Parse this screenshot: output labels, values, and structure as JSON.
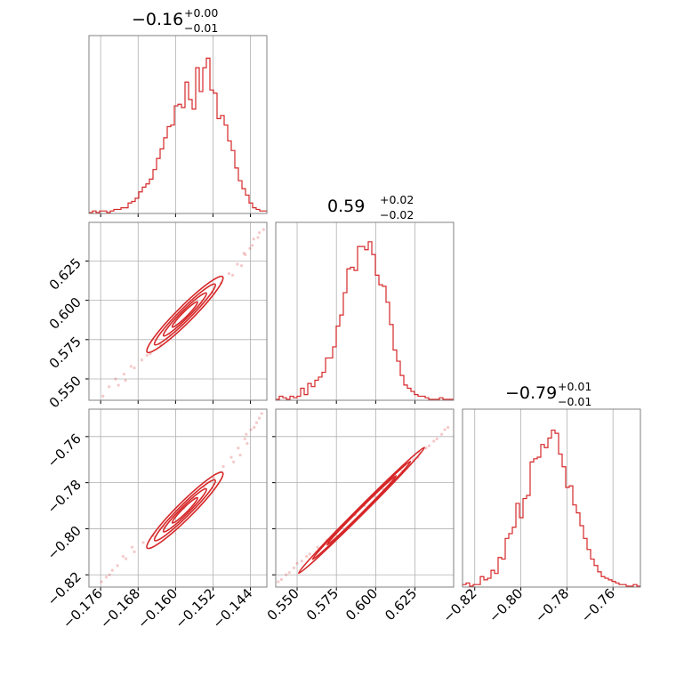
{
  "chart_data": {
    "type": "corner",
    "colors": {
      "line": "#d62728",
      "frame": "#808080",
      "grid": "#b0b0b0"
    },
    "params": [
      {
        "median": "−0.16",
        "plus": "+0.00",
        "minus": "−0.01",
        "range": [
          -0.1785,
          -0.1405
        ],
        "ticks": [
          -0.176,
          -0.168,
          -0.16,
          -0.152,
          -0.144
        ],
        "tick_labels": [
          "−0.176",
          "−0.168",
          "−0.160",
          "−0.152",
          "−0.144"
        ]
      },
      {
        "median": "0.59",
        "plus": "+0.02",
        "minus": "−0.02",
        "range": [
          0.5364,
          0.6496
        ],
        "ticks": [
          0.55,
          0.575,
          0.6,
          0.625
        ],
        "tick_labels": [
          "0.550",
          "0.575",
          "0.600",
          "0.625"
        ]
      },
      {
        "median": "−0.79",
        "plus": "+0.01",
        "minus": "−0.01",
        "range": [
          -0.8253,
          -0.7481
        ],
        "ticks": [
          -0.82,
          -0.8,
          -0.78,
          -0.76
        ],
        "tick_labels": [
          "−0.82",
          "−0.80",
          "−0.78",
          "−0.76"
        ]
      }
    ],
    "histograms": [
      [
        0,
        0.01,
        0,
        0.01,
        0.01,
        0,
        0.01,
        0.02,
        0.02,
        0.03,
        0.03,
        0.06,
        0.07,
        0.09,
        0.13,
        0.16,
        0.18,
        0.21,
        0.27,
        0.34,
        0.4,
        0.47,
        0.54,
        0.55,
        0.67,
        0.68,
        0.66,
        0.82,
        0.71,
        0.65,
        0.91,
        0.76,
        0.91,
        0.97,
        0.77,
        0.75,
        0.59,
        0.61,
        0.55,
        0.45,
        0.39,
        0.28,
        0.2,
        0.15,
        0.11,
        0.06,
        0.03,
        0.02,
        0.01,
        0.01
      ],
      [
        0,
        0.02,
        0.01,
        0,
        0.02,
        0.01,
        0.02,
        0.07,
        0.03,
        0.1,
        0.08,
        0.12,
        0.14,
        0.17,
        0.26,
        0.26,
        0.33,
        0.46,
        0.53,
        0.67,
        0.82,
        0.83,
        0.81,
        0.96,
        0.96,
        0.94,
        0.99,
        0.91,
        0.78,
        0.72,
        0.71,
        0.61,
        0.47,
        0.31,
        0.24,
        0.15,
        0.09,
        0.07,
        0.05,
        0.03,
        0.02,
        0.02,
        0.01,
        0,
        0,
        0,
        0.01,
        0,
        0,
        0
      ],
      [
        0.01,
        0.02,
        0,
        0.01,
        0.01,
        0.06,
        0.04,
        0.05,
        0.1,
        0.08,
        0.18,
        0.17,
        0.3,
        0.33,
        0.37,
        0.52,
        0.43,
        0.55,
        0.57,
        0.78,
        0.8,
        0.81,
        0.89,
        0.87,
        0.93,
        0.98,
        0.96,
        0.83,
        0.75,
        0.62,
        0.63,
        0.51,
        0.46,
        0.38,
        0.3,
        0.23,
        0.17,
        0.13,
        0.09,
        0.06,
        0.05,
        0.04,
        0.03,
        0.02,
        0.01,
        0.01,
        0,
        0,
        0.01,
        0
      ]
    ],
    "pairs": [
      {
        "x": 0,
        "y": 1,
        "center": [
          -0.158,
          0.591
        ],
        "points": [
          [
            -0.1755,
            0.539
          ],
          [
            -0.1742,
            0.545
          ],
          [
            -0.1728,
            0.55
          ],
          [
            -0.171,
            0.553
          ],
          [
            -0.1695,
            0.558
          ],
          [
            -0.1672,
            0.562
          ],
          [
            -0.1654,
            0.566
          ],
          [
            -0.1633,
            0.572
          ],
          [
            -0.1611,
            0.578
          ],
          [
            -0.1588,
            0.584
          ],
          [
            -0.1569,
            0.591
          ],
          [
            -0.1546,
            0.598
          ],
          [
            -0.1522,
            0.605
          ],
          [
            -0.1503,
            0.611
          ],
          [
            -0.1486,
            0.617
          ],
          [
            -0.1468,
            0.623
          ],
          [
            -0.1451,
            0.629
          ],
          [
            -0.1436,
            0.635
          ],
          [
            -0.1424,
            0.64
          ],
          [
            -0.1412,
            0.645
          ],
          [
            -0.1441,
            0.633
          ],
          [
            -0.1459,
            0.622
          ],
          [
            -0.1478,
            0.616
          ],
          [
            -0.1688,
            0.557
          ],
          [
            -0.1707,
            0.549
          ],
          [
            -0.1661,
            0.565
          ],
          [
            -0.1454,
            0.63
          ],
          [
            -0.1433,
            0.639
          ],
          [
            -0.1421,
            0.643
          ],
          [
            -0.1722,
            0.546
          ]
        ]
      },
      {
        "x": 0,
        "y": 2,
        "center": [
          -0.158,
          -0.792
        ],
        "points": [
          [
            -0.1758,
            -0.823
          ],
          [
            -0.1741,
            -0.82
          ],
          [
            -0.1724,
            -0.816
          ],
          [
            -0.1706,
            -0.813
          ],
          [
            -0.1688,
            -0.81
          ],
          [
            -0.1669,
            -0.806
          ],
          [
            -0.1648,
            -0.803
          ],
          [
            -0.1626,
            -0.799
          ],
          [
            -0.1604,
            -0.795
          ],
          [
            -0.1582,
            -0.791
          ],
          [
            -0.1561,
            -0.787
          ],
          [
            -0.1539,
            -0.782
          ],
          [
            -0.1518,
            -0.778
          ],
          [
            -0.1498,
            -0.773
          ],
          [
            -0.1481,
            -0.769
          ],
          [
            -0.1466,
            -0.765
          ],
          [
            -0.1452,
            -0.761
          ],
          [
            -0.1439,
            -0.757
          ],
          [
            -0.1427,
            -0.754
          ],
          [
            -0.1416,
            -0.75
          ],
          [
            -0.1447,
            -0.763
          ],
          [
            -0.1462,
            -0.768
          ],
          [
            -0.1476,
            -0.771
          ],
          [
            -0.1712,
            -0.812
          ],
          [
            -0.1735,
            -0.818
          ],
          [
            -0.1693,
            -0.808
          ],
          [
            -0.1449,
            -0.759
          ],
          [
            -0.1432,
            -0.756
          ],
          [
            -0.1421,
            -0.752
          ],
          [
            -0.1748,
            -0.821
          ]
        ]
      },
      {
        "x": 1,
        "y": 2,
        "center": [
          0.591,
          -0.792
        ],
        "points": [
          [
            0.538,
            -0.823
          ],
          [
            0.543,
            -0.82
          ],
          [
            0.548,
            -0.817
          ],
          [
            0.553,
            -0.814
          ],
          [
            0.558,
            -0.811
          ],
          [
            0.563,
            -0.808
          ],
          [
            0.569,
            -0.805
          ],
          [
            0.575,
            -0.801
          ],
          [
            0.581,
            -0.797
          ],
          [
            0.587,
            -0.794
          ],
          [
            0.593,
            -0.79
          ],
          [
            0.599,
            -0.786
          ],
          [
            0.605,
            -0.783
          ],
          [
            0.611,
            -0.779
          ],
          [
            0.617,
            -0.775
          ],
          [
            0.622,
            -0.772
          ],
          [
            0.627,
            -0.769
          ],
          [
            0.632,
            -0.765
          ],
          [
            0.637,
            -0.762
          ],
          [
            0.642,
            -0.759
          ],
          [
            0.646,
            -0.756
          ],
          [
            0.54,
            -0.822
          ],
          [
            0.545,
            -0.819
          ],
          [
            0.628,
            -0.767
          ],
          [
            0.634,
            -0.764
          ],
          [
            0.639,
            -0.761
          ],
          [
            0.644,
            -0.757
          ],
          [
            0.556,
            -0.812
          ],
          [
            0.55,
            -0.815
          ],
          [
            0.624,
            -0.77
          ]
        ]
      }
    ]
  }
}
